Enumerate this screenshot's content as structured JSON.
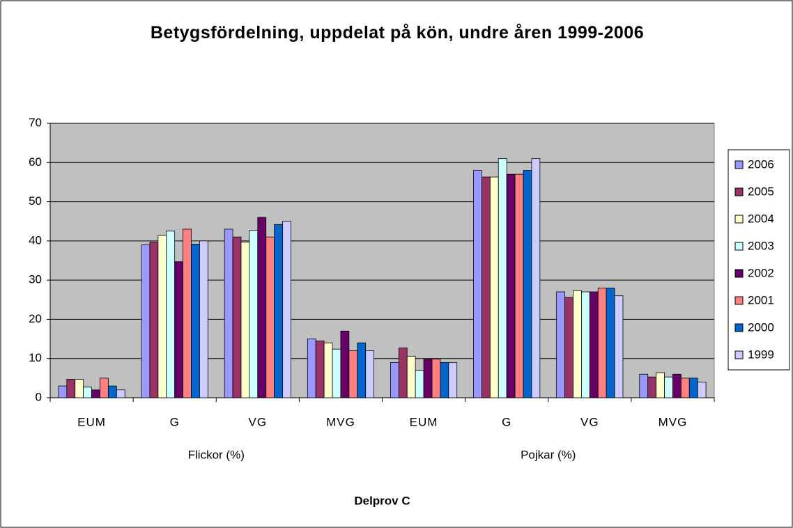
{
  "chart_data": {
    "type": "bar",
    "title": "Betygsfördelning, uppdelat på kön, undre åren 1999-2006",
    "xlabel": "Delprov C",
    "groups": [
      "Flickor (%)",
      "Pojkar (%)"
    ],
    "categories": [
      "EUM",
      "G",
      "VG",
      "MVG",
      "EUM",
      "G",
      "VG",
      "MVG"
    ],
    "series": [
      {
        "name": "2006",
        "color": "#9999ff",
        "values": [
          3,
          39,
          43,
          15,
          9,
          58,
          27,
          6
        ]
      },
      {
        "name": "2005",
        "color": "#993366",
        "values": [
          4.7,
          39.7,
          41,
          14.5,
          12.7,
          56.3,
          25.6,
          5.3
        ]
      },
      {
        "name": "2004",
        "color": "#ffffcc",
        "values": [
          4.7,
          41.4,
          39.7,
          14,
          10.6,
          56.3,
          27.3,
          6.4
        ]
      },
      {
        "name": "2003",
        "color": "#ccffff",
        "values": [
          2.7,
          42.5,
          42.7,
          12.4,
          7,
          61,
          27,
          5.3
        ]
      },
      {
        "name": "2002",
        "color": "#660066",
        "values": [
          2,
          34.7,
          46,
          17,
          9.9,
          57,
          27,
          6
        ]
      },
      {
        "name": "2001",
        "color": "#ff8080",
        "values": [
          5,
          43,
          41,
          12,
          9.9,
          57,
          28,
          5
        ]
      },
      {
        "name": "2000",
        "color": "#0066cc",
        "values": [
          3,
          39.2,
          44.2,
          14,
          9,
          58,
          28,
          5
        ]
      },
      {
        "name": "1999",
        "color": "#ccccff",
        "values": [
          2,
          40,
          45,
          12,
          9,
          61,
          26,
          4
        ]
      }
    ],
    "ylim": [
      0,
      70
    ],
    "yticks": [
      0,
      10,
      20,
      30,
      40,
      50,
      60,
      70
    ],
    "grid": true,
    "plot_background": "#c0c0c0",
    "legend": "right"
  }
}
